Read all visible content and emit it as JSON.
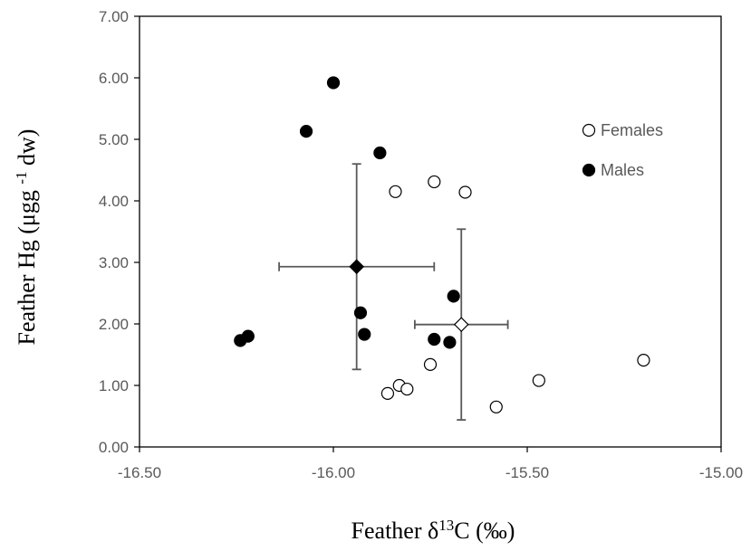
{
  "chart_data": {
    "type": "scatter",
    "xlabel": "Feather δ13C (‰)",
    "ylabel": "Feather Hg (μgg -1 dw)",
    "xlim": [
      -16.5,
      -15.0
    ],
    "ylim": [
      0.0,
      7.0
    ],
    "x_tick_values": [
      -16.5,
      -16.0,
      -15.5,
      -15.0
    ],
    "x_tick_labels": [
      "-16.50",
      "-16.00",
      "-15.50",
      "-15.00"
    ],
    "y_tick_values": [
      0,
      1,
      2,
      3,
      4,
      5,
      6,
      7
    ],
    "y_tick_labels": [
      "0.00",
      "1.00",
      "2.00",
      "3.00",
      "4.00",
      "5.00",
      "6.00",
      "7.00"
    ],
    "grid": false,
    "legend_position": "top-right",
    "legend_entries": [
      "Females",
      "Males"
    ],
    "series": [
      {
        "name": "Females",
        "marker": "open-circle",
        "x": [
          -15.84,
          -15.74,
          -15.66,
          -15.75,
          -15.83,
          -15.81,
          -15.86,
          -15.58,
          -15.47,
          -15.2
        ],
        "y": [
          4.15,
          4.31,
          4.14,
          1.34,
          1.0,
          0.94,
          0.87,
          0.65,
          1.08,
          1.41
        ]
      },
      {
        "name": "Males",
        "marker": "filled-circle",
        "x": [
          -16.0,
          -16.07,
          -15.88,
          -15.93,
          -15.92,
          -15.74,
          -15.7,
          -15.69,
          -16.24,
          -16.22
        ],
        "y": [
          5.92,
          5.13,
          4.78,
          2.18,
          1.83,
          1.75,
          1.7,
          2.45,
          1.73,
          1.8
        ]
      }
    ],
    "means": [
      {
        "group": "Males",
        "marker": "filled-diamond",
        "x": -15.94,
        "y": 2.93,
        "x_error": 0.2,
        "y_error": 1.67
      },
      {
        "group": "Females",
        "marker": "open-diamond",
        "x": -15.67,
        "y": 1.99,
        "x_error": 0.12,
        "y_error": 1.55
      }
    ],
    "colors": {
      "axis": "#000000",
      "tick_label": "#595959",
      "error_bar": "#595959",
      "marker": "#000000",
      "background": "#ffffff"
    }
  }
}
